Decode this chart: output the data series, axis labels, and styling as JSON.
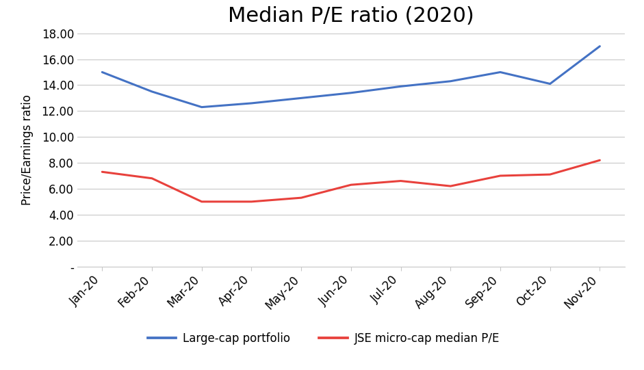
{
  "title": "Median P/E ratio (2020)",
  "ylabel": "Price/Earnings ratio",
  "categories": [
    "Jan-20",
    "Feb-20",
    "Mar-20",
    "Apr-20",
    "May-20",
    "Jun-20",
    "Jul-20",
    "Aug-20",
    "Sep-20",
    "Oct-20",
    "Nov-20"
  ],
  "large_cap": [
    15.0,
    13.5,
    12.3,
    12.6,
    13.0,
    13.4,
    13.9,
    14.3,
    15.0,
    14.1,
    17.0
  ],
  "micro_cap": [
    7.3,
    6.8,
    5.0,
    5.0,
    5.3,
    6.3,
    6.6,
    6.2,
    7.0,
    7.1,
    8.2
  ],
  "large_cap_color": "#4472C4",
  "micro_cap_color": "#E8413C",
  "large_cap_label": "Large-cap portfolio",
  "micro_cap_label": "JSE micro-cap median P/E",
  "ylim_min": 0,
  "ylim_max": 18.0,
  "ytick_step": 2.0,
  "background_color": "#FFFFFF",
  "grid_color": "#C8C8C8",
  "title_fontsize": 22,
  "ylabel_fontsize": 12,
  "tick_fontsize": 12,
  "legend_fontsize": 12,
  "line_width": 2.2
}
